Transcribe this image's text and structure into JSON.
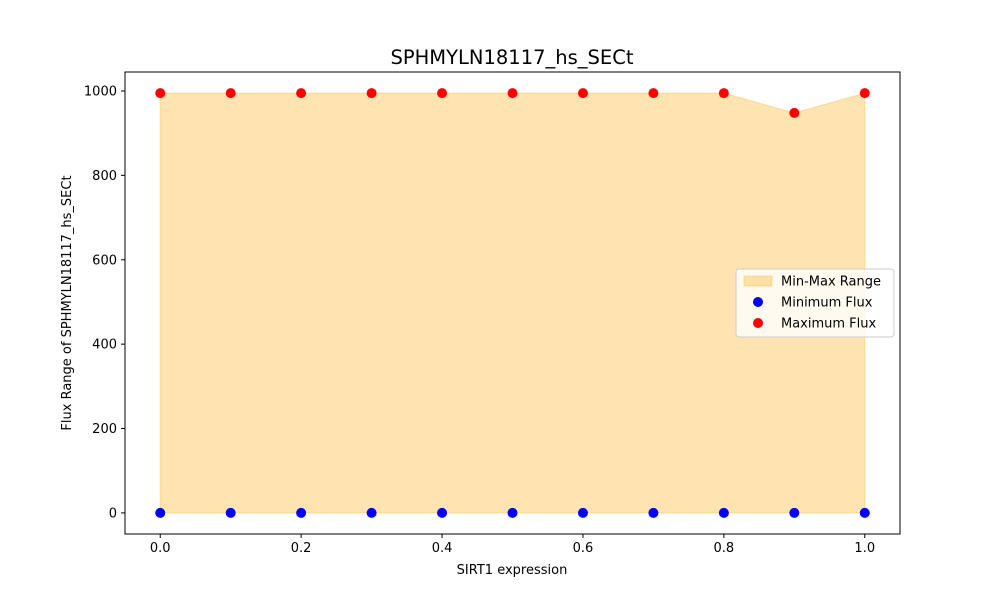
{
  "chart_data": {
    "type": "area",
    "title": "SPHMYLN18117_hs_SECt",
    "xlabel": "SIRT1 expression",
    "ylabel": "Flux Range of SPHMYLN18117_hs_SECt",
    "xlim": [
      -0.05,
      1.05
    ],
    "ylim": [
      -50,
      1045
    ],
    "xticks": [
      0.0,
      0.2,
      0.4,
      0.6,
      0.8,
      1.0
    ],
    "xtick_labels": [
      "0.0",
      "0.2",
      "0.4",
      "0.6",
      "0.8",
      "1.0"
    ],
    "yticks": [
      0,
      200,
      400,
      600,
      800,
      1000
    ],
    "ytick_labels": [
      "0",
      "200",
      "400",
      "600",
      "800",
      "1000"
    ],
    "grid": false,
    "legend_position": "center-right",
    "x": [
      0.0,
      0.1,
      0.2,
      0.3,
      0.4,
      0.5,
      0.6,
      0.7,
      0.8,
      0.9,
      1.0
    ],
    "series": [
      {
        "name": "Min-Max Range",
        "kind": "fill_between",
        "color": "#ffa500",
        "opacity": 0.3,
        "lower": [
          0,
          0,
          0,
          0,
          0,
          0,
          0,
          0,
          0,
          0,
          0
        ],
        "upper": [
          995,
          995,
          995,
          995,
          995,
          995,
          995,
          995,
          995,
          948,
          995
        ]
      },
      {
        "name": "Minimum Flux",
        "kind": "scatter",
        "color": "#0000ff",
        "values": [
          0,
          0,
          0,
          0,
          0,
          0,
          0,
          0,
          0,
          0,
          0
        ]
      },
      {
        "name": "Maximum Flux",
        "kind": "scatter",
        "color": "#ff0000",
        "values": [
          995,
          995,
          995,
          995,
          995,
          995,
          995,
          995,
          995,
          948,
          995
        ]
      }
    ]
  }
}
